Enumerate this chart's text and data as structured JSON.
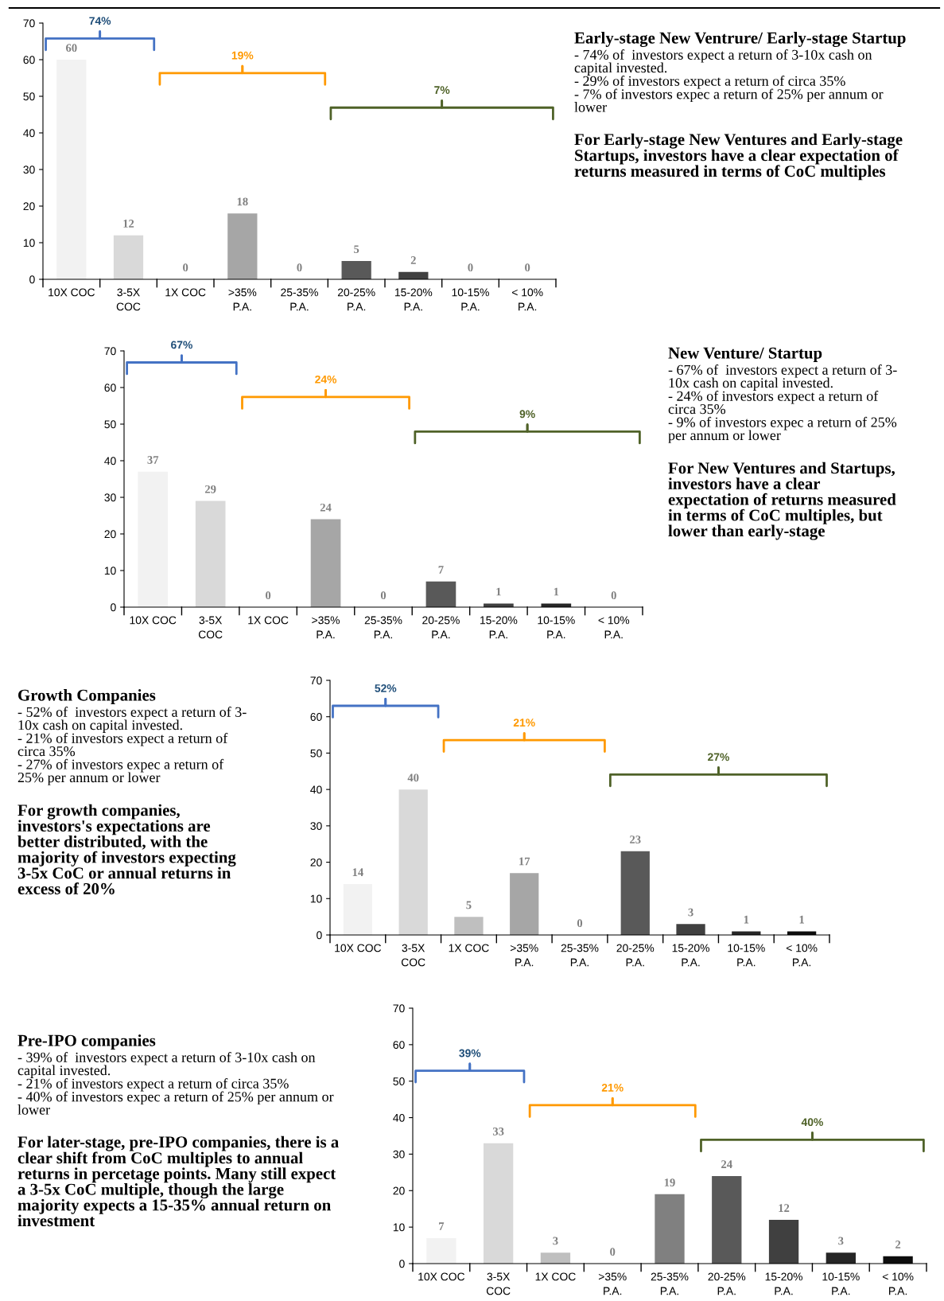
{
  "chart_data": [
    {
      "type": "bar",
      "categories": [
        "10X COC",
        "3-5X\nCOC",
        "1X COC",
        ">35%\nP.A.",
        "25-35%\nP.A.",
        "20-25%\nP.A.",
        "15-20%\nP.A.",
        "10-15%\nP.A.",
        "< 10%\nP.A."
      ],
      "values": [
        60,
        12,
        0,
        18,
        0,
        5,
        2,
        0,
        0
      ],
      "colors": [
        "#f2f2f2",
        "#d9d9d9",
        "#bfbfbf",
        "#a6a6a6",
        "#808080",
        "#595959",
        "#404040",
        "#262626",
        "#0d0d0d"
      ],
      "ylim": [
        0,
        70
      ],
      "yticks": [
        0,
        10,
        20,
        30,
        40,
        50,
        60,
        70
      ],
      "data_labels": true,
      "annotations": [
        "74%",
        "19%",
        "7%",
        "Early-stage New Ventrure/ Early-stage Startup",
        "- 74% of  investors expect a return of 3-10x cash on\ncapital invested.\n- 29% of investors expect a return of circa 35%\n- 7% of investors expec a return of 25% per annum or\nlower",
        "For Early-stage New Ventures and Early-stage\nStartups, investors have a clear expectation of\nreturns measured in terms of CoC multiples"
      ]
    },
    {
      "type": "bar",
      "categories": [
        "10X COC",
        "3-5X\nCOC",
        "1X COC",
        ">35%\nP.A.",
        "25-35%\nP.A.",
        "20-25%\nP.A.",
        "15-20%\nP.A.",
        "10-15%\nP.A.",
        "< 10%\nP.A."
      ],
      "values": [
        37,
        29,
        0,
        24,
        0,
        7,
        1,
        1,
        0
      ],
      "colors": [
        "#f2f2f2",
        "#d9d9d9",
        "#bfbfbf",
        "#a6a6a6",
        "#808080",
        "#595959",
        "#404040",
        "#262626",
        "#0d0d0d"
      ],
      "ylim": [
        0,
        70
      ],
      "yticks": [
        0,
        10,
        20,
        30,
        40,
        50,
        60,
        70
      ],
      "data_labels": true,
      "annotations": [
        "67%",
        "24%",
        "9%",
        "New Venture/ Startup",
        "- 67% of  investors expect a return of 3-\n10x cash on capital invested.\n- 24% of investors expect a return of\ncirca 35%\n- 9% of investors expec a return of 25%\nper annum or lower",
        "For New Ventures and Startups,\ninvestors have a clear\nexpectation of returns measured\nin terms of CoC multiples, but\nlower than early-stage"
      ]
    },
    {
      "type": "bar",
      "categories": [
        "10X COC",
        "3-5X\nCOC",
        "1X COC",
        ">35%\nP.A.",
        "25-35%\nP.A.",
        "20-25%\nP.A.",
        "15-20%\nP.A.",
        "10-15%\nP.A.",
        "< 10%\nP.A."
      ],
      "values": [
        14,
        40,
        5,
        17,
        0,
        23,
        3,
        1,
        1
      ],
      "colors": [
        "#f2f2f2",
        "#d9d9d9",
        "#bfbfbf",
        "#a6a6a6",
        "#808080",
        "#595959",
        "#404040",
        "#262626",
        "#0d0d0d"
      ],
      "ylim": [
        0,
        70
      ],
      "yticks": [
        0,
        10,
        20,
        30,
        40,
        50,
        60,
        70
      ],
      "data_labels": true,
      "annotations": [
        "52%",
        "21%",
        "27%",
        "Growth Companies",
        "- 52% of  investors expect a return of 3-\n10x cash on capital invested.\n- 21% of investors expect a return of\ncirca 35%\n- 27% of investors expec a return of\n25% per annum or lower",
        "For growth companies,\ninvestors's expectations are\nbetter distributed, with the\nmajority of investors expecting\n3-5x CoC or annual returns in\nexcess of 20%"
      ]
    },
    {
      "type": "bar",
      "categories": [
        "10X COC",
        "3-5X\nCOC",
        "1X COC",
        ">35%\nP.A.",
        "25-35%\nP.A.",
        "20-25%\nP.A.",
        "15-20%\nP.A.",
        "10-15%\nP.A.",
        "< 10%\nP.A."
      ],
      "values": [
        7,
        33,
        3,
        0,
        19,
        24,
        12,
        3,
        2
      ],
      "colors": [
        "#f2f2f2",
        "#d9d9d9",
        "#bfbfbf",
        "#a6a6a6",
        "#808080",
        "#595959",
        "#404040",
        "#262626",
        "#0d0d0d"
      ],
      "ylim": [
        0,
        70
      ],
      "yticks": [
        0,
        10,
        20,
        30,
        40,
        50,
        60,
        70
      ],
      "data_labels": true,
      "annotations": [
        "39%",
        "21%",
        "40%",
        "Pre-IPO companies",
        "- 39% of  investors expect a return of 3-10x cash on\ncapital invested.\n- 21% of investors expect a return of circa 35%\n- 40% of investors expec a return of 25% per annum or\nlower",
        "For later-stage, pre-IPO companies, there is a\nclear shift from CoC multiples to annual\nreturns in percetage points. Many still expect\na 3-5x CoC multiple, though the large\nmajority expects a 15-35% annual return on\ninvestment"
      ]
    }
  ]
}
